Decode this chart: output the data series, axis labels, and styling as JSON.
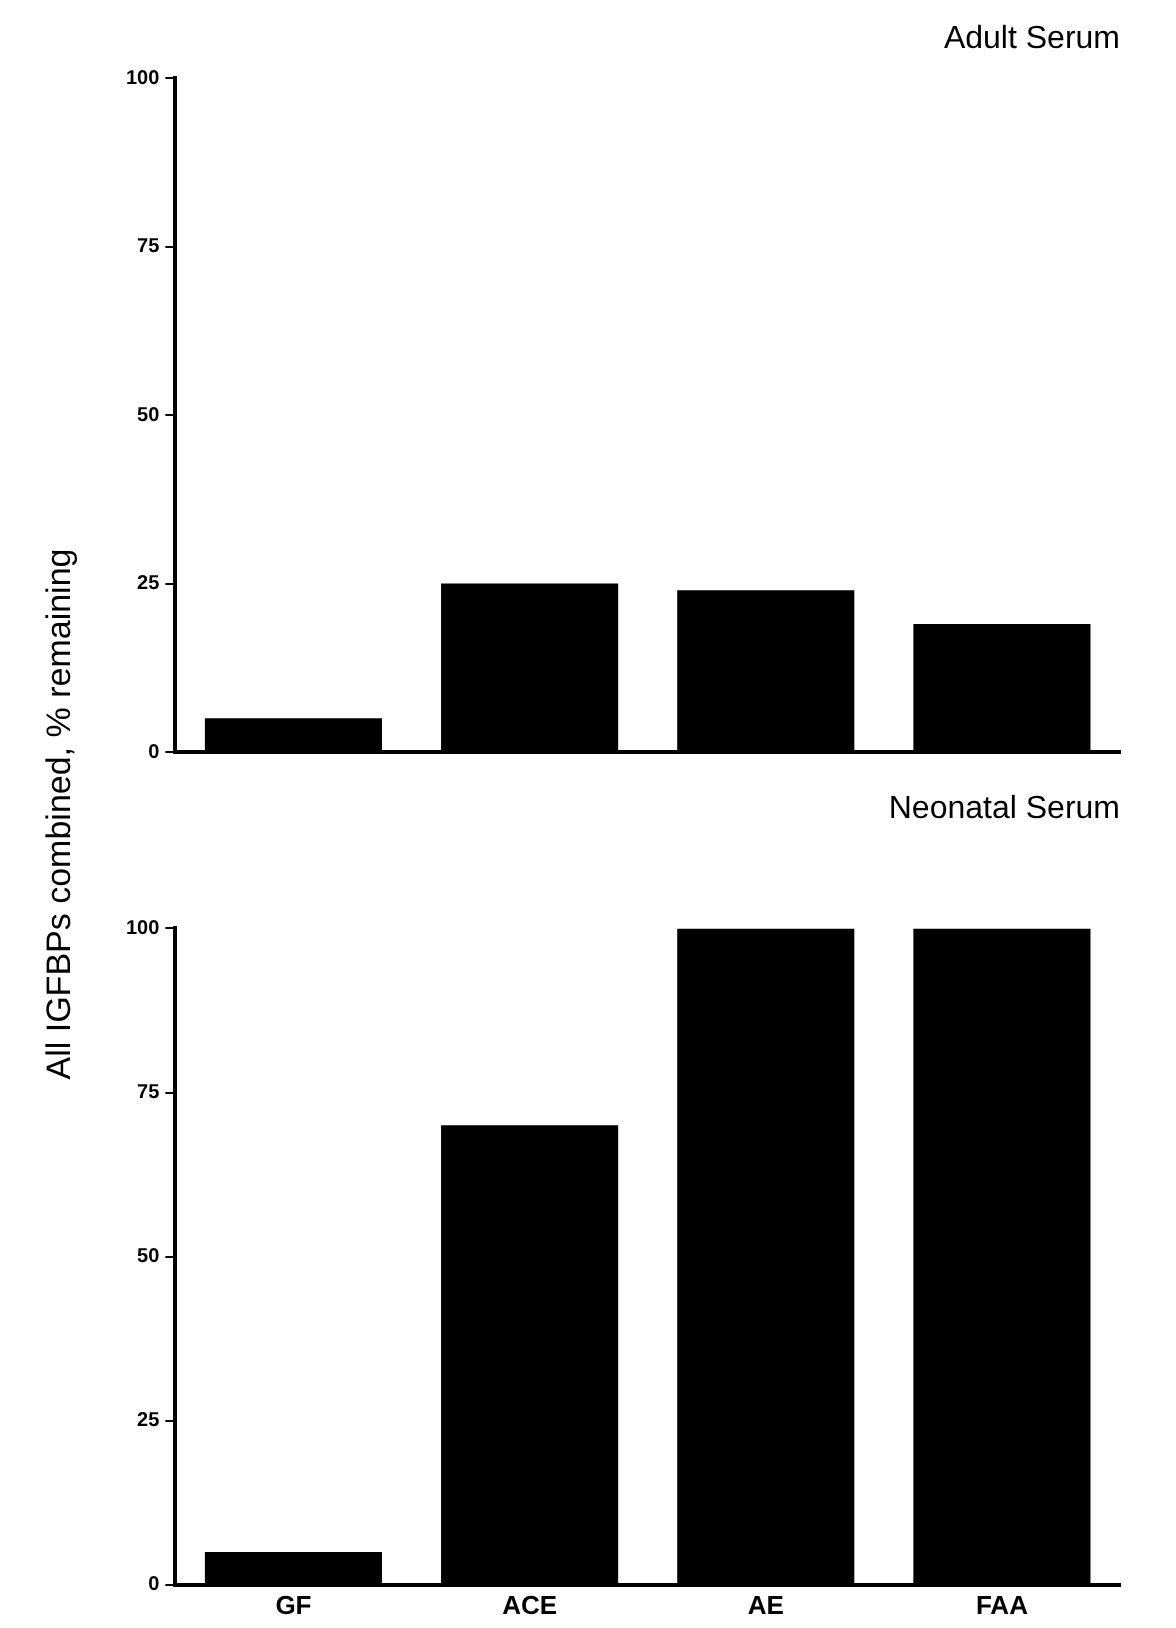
{
  "chart_data": [
    {
      "type": "bar",
      "title": "Adult Serum",
      "ylabel": "All IGFBPs combined, % remaining",
      "categories": [
        null,
        null,
        null,
        null
      ],
      "values": [
        5,
        25,
        24,
        19
      ],
      "color": "#000000",
      "ylim": [
        0,
        100
      ],
      "yticks": [
        0,
        25,
        50,
        75,
        100
      ],
      "grid": false,
      "legend": false,
      "tick_labels": "y"
    },
    {
      "type": "bar",
      "title": "Neonatal Serum",
      "categories": [
        "GF",
        "ACE",
        "AE",
        "FAA"
      ],
      "values": [
        5,
        70,
        100,
        100
      ],
      "color": "#000000",
      "ylim": [
        0,
        100
      ],
      "yticks": [
        0,
        25,
        50,
        75,
        100
      ],
      "grid": false,
      "legend": false
    }
  ]
}
